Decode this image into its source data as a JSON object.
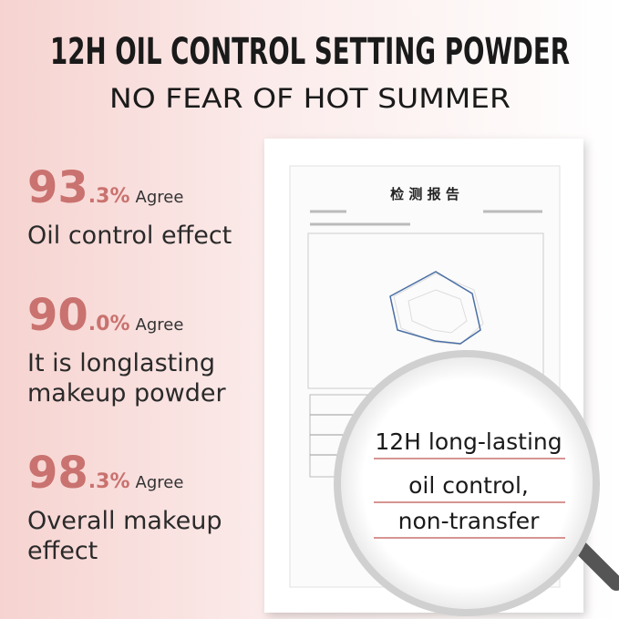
{
  "header": {
    "title": "12H OIL CONTROL SETTING POWDER",
    "subtitle": "NO FEAR OF HOT SUMMER"
  },
  "stats": [
    {
      "whole": "93",
      "decimal": ".3%",
      "agree": "Agree",
      "lines": [
        "Oil control effect"
      ]
    },
    {
      "whole": "90",
      "decimal": ".0%",
      "agree": "Agree",
      "lines": [
        "It is longlasting",
        "makeup powder"
      ]
    },
    {
      "whole": "98",
      "decimal": ".3%",
      "agree": "Agree",
      "lines": [
        "Overall makeup",
        "effect"
      ]
    }
  ],
  "report": {
    "title": "检 测 报 告"
  },
  "magnifier": {
    "lines": [
      "12H long-lasting",
      "oil control,",
      "non-transfer"
    ]
  }
}
